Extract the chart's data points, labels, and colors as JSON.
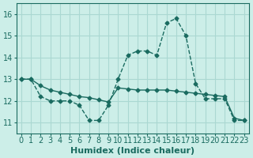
{
  "xlabel": "Humidex (Indice chaleur)",
  "ylabel": "",
  "bg_color": "#cceee8",
  "grid_color": "#aad8d2",
  "line_color": "#1a6b60",
  "x_values": [
    0,
    1,
    2,
    3,
    4,
    5,
    6,
    7,
    8,
    9,
    10,
    11,
    12,
    13,
    14,
    15,
    16,
    17,
    18,
    19,
    20,
    21,
    22,
    23
  ],
  "line1_y": [
    13.0,
    13.0,
    12.2,
    12.0,
    12.0,
    12.0,
    11.8,
    11.1,
    11.1,
    11.8,
    13.0,
    14.1,
    14.3,
    14.3,
    14.1,
    15.6,
    15.8,
    15.0,
    12.8,
    12.1,
    12.1,
    12.1,
    11.1,
    11.1
  ],
  "line2_y": [
    13.0,
    13.0,
    12.7,
    12.5,
    12.4,
    12.3,
    12.2,
    12.15,
    12.05,
    11.95,
    12.6,
    12.55,
    12.5,
    12.5,
    12.5,
    12.5,
    12.45,
    12.4,
    12.35,
    12.3,
    12.25,
    12.2,
    11.2,
    11.1
  ],
  "ylim": [
    10.5,
    16.5
  ],
  "yticks": [
    11,
    12,
    13,
    14,
    15,
    16
  ],
  "xlim": [
    -0.5,
    23.5
  ],
  "xticks": [
    0,
    1,
    2,
    3,
    4,
    5,
    6,
    7,
    8,
    9,
    10,
    11,
    12,
    13,
    14,
    15,
    16,
    17,
    18,
    19,
    20,
    21,
    22,
    23
  ],
  "tick_fontsize": 7,
  "xlabel_fontsize": 8
}
